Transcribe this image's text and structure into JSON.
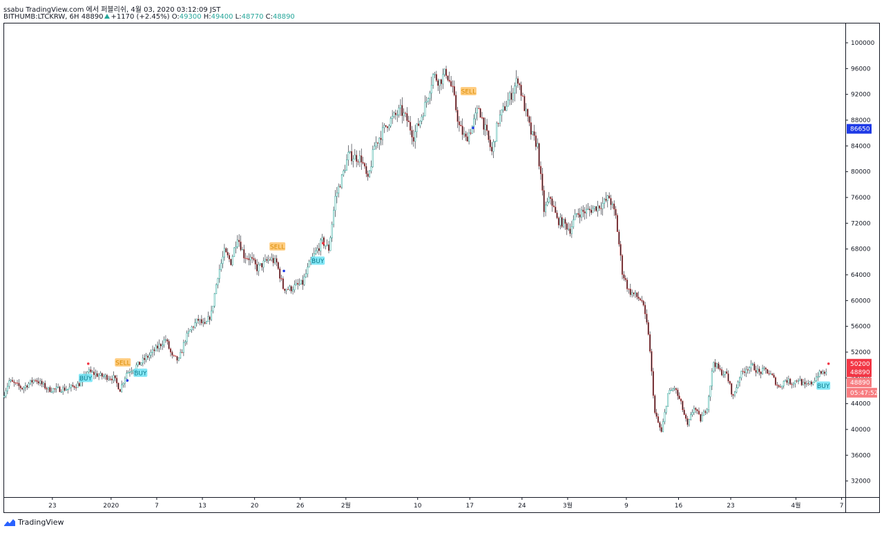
{
  "header": {
    "line1": "ssabu TradingView.com 에서 퍼블리쉬, 4월 03, 2020 03:12:09 JST",
    "symbol": "BITHUMB:LTCKRW, 6H",
    "last": "48890",
    "change": "+1170 (+2.45%)",
    "o_label": "O:",
    "o": "49300",
    "h_label": "H:",
    "h": "49400",
    "l_label": "L:",
    "l": "48770",
    "c_label": "C:",
    "c": "48890"
  },
  "footer": {
    "brand": "TradingView"
  },
  "colors": {
    "up": "#26a69a",
    "down": "#ef5350",
    "candle_body": "#131722",
    "buy": "#6fe3f5",
    "sell": "#ffc46b",
    "blue_badge": "#1e3ae6",
    "red_badge": "#f23645",
    "light_red_badge": "#f77c80"
  },
  "chart_data": {
    "type": "candlestick",
    "ylim": [
      29500,
      103000
    ],
    "y_ticks": [
      32000,
      36000,
      40000,
      44000,
      48000,
      52000,
      56000,
      60000,
      64000,
      68000,
      72000,
      76000,
      80000,
      84000,
      88000,
      92000,
      96000,
      100000
    ],
    "x_ticks": [
      {
        "label": "23",
        "t": 7.5
      },
      {
        "label": "2020",
        "t": 16.5
      },
      {
        "label": "7",
        "t": 23.5
      },
      {
        "label": "13",
        "t": 30.5
      },
      {
        "label": "20",
        "t": 38.5
      },
      {
        "label": "26",
        "t": 45.5
      },
      {
        "label": "2월",
        "t": 52.5
      },
      {
        "label": "10",
        "t": 63.5
      },
      {
        "label": "17",
        "t": 71.5
      },
      {
        "label": "24",
        "t": 79.5
      },
      {
        "label": "3월",
        "t": 86.5
      },
      {
        "label": "9",
        "t": 95.5
      },
      {
        "label": "16",
        "t": 103.5
      },
      {
        "label": "23",
        "t": 111.5
      },
      {
        "label": "4월",
        "t": 121.5
      },
      {
        "label": "7",
        "t": 128.5
      }
    ],
    "t_range": [
      0,
      135
    ],
    "anchors": [
      [
        0,
        45000
      ],
      [
        1,
        47500
      ],
      [
        3,
        46400
      ],
      [
        5,
        47800
      ],
      [
        7,
        46200
      ],
      [
        10,
        46300
      ],
      [
        12,
        47200
      ],
      [
        13,
        49000
      ],
      [
        15,
        48300
      ],
      [
        17,
        48000
      ],
      [
        18,
        46200
      ],
      [
        19,
        48800
      ],
      [
        21,
        50200
      ],
      [
        23,
        52000
      ],
      [
        25,
        54000
      ],
      [
        26,
        51200
      ],
      [
        27,
        50700
      ],
      [
        28,
        54000
      ],
      [
        29,
        55800
      ],
      [
        30,
        57000
      ],
      [
        31,
        56000
      ],
      [
        32,
        58000
      ],
      [
        33,
        64000
      ],
      [
        34,
        67500
      ],
      [
        35,
        66000
      ],
      [
        36,
        70000
      ],
      [
        37,
        67000
      ],
      [
        38,
        66500
      ],
      [
        39,
        65000
      ],
      [
        41,
        66500
      ],
      [
        42,
        65800
      ],
      [
        43,
        62000
      ],
      [
        44,
        61800
      ],
      [
        46,
        62700
      ],
      [
        47,
        65500
      ],
      [
        48,
        67500
      ],
      [
        49,
        69200
      ],
      [
        50,
        68000
      ],
      [
        51,
        76000
      ],
      [
        52,
        79000
      ],
      [
        53,
        82500
      ],
      [
        55,
        82000
      ],
      [
        56,
        78500
      ],
      [
        57,
        84000
      ],
      [
        59,
        87500
      ],
      [
        61,
        89500
      ],
      [
        62,
        88000
      ],
      [
        63,
        85500
      ],
      [
        64,
        88000
      ],
      [
        65,
        91000
      ],
      [
        66,
        95000
      ],
      [
        67,
        94000
      ],
      [
        68,
        95500
      ],
      [
        69,
        92500
      ],
      [
        70,
        87000
      ],
      [
        71,
        85000
      ],
      [
        72,
        87000
      ],
      [
        73,
        90000
      ],
      [
        74,
        86500
      ],
      [
        75,
        83000
      ],
      [
        76,
        88000
      ],
      [
        78,
        92000
      ],
      [
        79,
        94500
      ],
      [
        80,
        90000
      ],
      [
        81,
        86000
      ],
      [
        82,
        84000
      ],
      [
        83,
        74000
      ],
      [
        84,
        76000
      ],
      [
        85,
        72500
      ],
      [
        86,
        72000
      ],
      [
        87,
        71000
      ],
      [
        88,
        73500
      ],
      [
        90,
        74000
      ],
      [
        92,
        75000
      ],
      [
        93,
        76000
      ],
      [
        94,
        73000
      ],
      [
        95,
        64500
      ],
      [
        96,
        61500
      ],
      [
        98,
        60000
      ],
      [
        99,
        55000
      ],
      [
        100,
        42500
      ],
      [
        101,
        39500
      ],
      [
        102,
        45500
      ],
      [
        103,
        46500
      ],
      [
        104,
        44000
      ],
      [
        105,
        40500
      ],
      [
        106,
        43500
      ],
      [
        107,
        41500
      ],
      [
        108,
        43500
      ],
      [
        109,
        50500
      ],
      [
        110,
        49000
      ],
      [
        111,
        48500
      ],
      [
        112,
        45000
      ],
      [
        113,
        48300
      ],
      [
        114,
        49500
      ],
      [
        115,
        49800
      ],
      [
        116,
        48800
      ],
      [
        117,
        49200
      ],
      [
        118,
        48200
      ],
      [
        119,
        46500
      ],
      [
        120,
        47700
      ],
      [
        121,
        47200
      ],
      [
        122,
        47800
      ],
      [
        123,
        46700
      ],
      [
        124,
        47200
      ],
      [
        125,
        48500
      ],
      [
        126,
        48890
      ]
    ],
    "signals": [
      {
        "type": "BUY",
        "t": 12.6,
        "price": 48000
      },
      {
        "type": "SELL",
        "t": 18.3,
        "price": 50400
      },
      {
        "type": "BUY",
        "t": 21.0,
        "price": 48800
      },
      {
        "type": "SELL",
        "t": 42.0,
        "price": 68400
      },
      {
        "type": "BUY",
        "t": 48.2,
        "price": 66200
      },
      {
        "type": "SELL",
        "t": 71.3,
        "price": 92500
      },
      {
        "type": "BUY",
        "t": 125.7,
        "price": 46800
      }
    ],
    "dots": [
      {
        "t": 19.0,
        "price": 47600,
        "color": "#1e3ae6"
      },
      {
        "t": 43.0,
        "price": 64600,
        "color": "#1e3ae6"
      },
      {
        "t": 72.0,
        "price": 86800,
        "color": "#1e3ae6"
      },
      {
        "t": 13.0,
        "price": 50200,
        "color": "#f23645"
      },
      {
        "t": 49.0,
        "price": 68900,
        "color": "#f23645"
      },
      {
        "t": 126.5,
        "price": 50200,
        "color": "#f23645"
      }
    ],
    "price_badges": [
      {
        "value": "86650",
        "price": 86650,
        "color": "#1e3ae6"
      },
      {
        "value": "50200",
        "price": 50200,
        "color": "#f23645"
      },
      {
        "value": "48890",
        "price": 48890,
        "color": "#f23645"
      },
      {
        "value": "48890",
        "price": 47300,
        "color": "#f77c80"
      },
      {
        "value": "05:47:52",
        "price": 45700,
        "color": "#f77c80"
      }
    ]
  }
}
